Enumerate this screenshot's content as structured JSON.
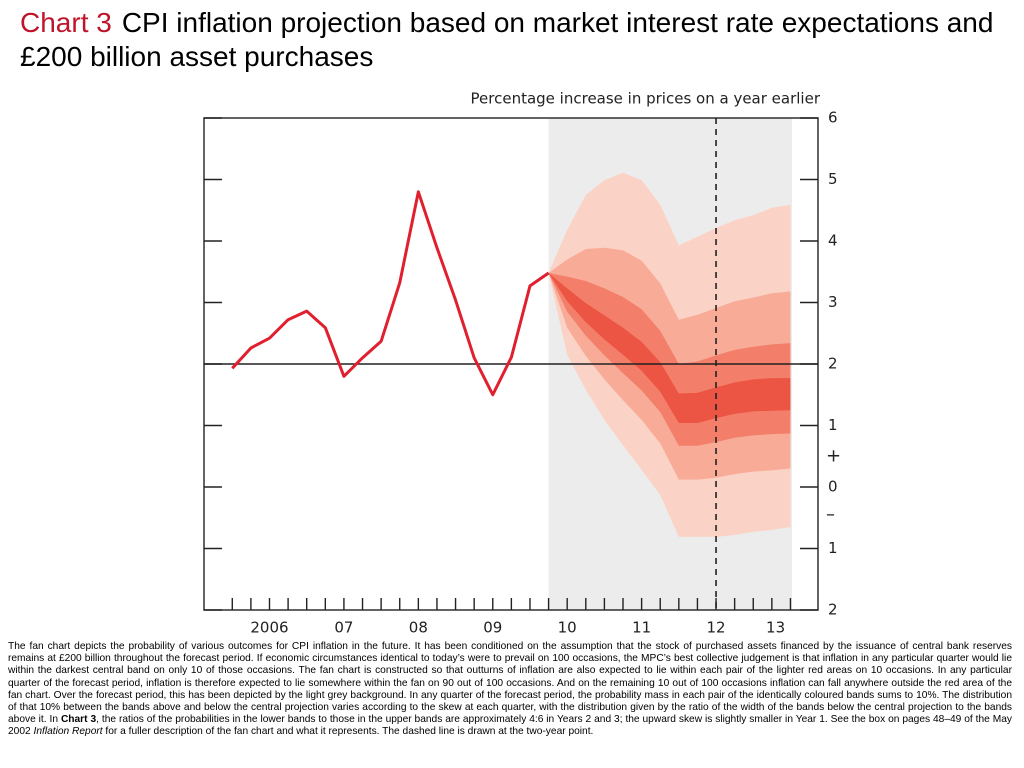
{
  "chart_data": {
    "type": "fan",
    "title_prefix": "Chart 3",
    "title": "CPI inflation projection based on market interest rate expectations and £200 billion asset purchases",
    "subtitle": "Percentage increase in prices on a year earlier",
    "axis_signs": {
      "positive": "+",
      "negative": "–"
    },
    "xlim": [
      2005.62,
      2013.87
    ],
    "ylim": [
      -2,
      6
    ],
    "yticks": [
      {
        "value": -2,
        "label": "2"
      },
      {
        "value": -1,
        "label": "1"
      },
      0,
      1,
      2,
      3,
      4,
      5,
      6
    ],
    "xticks": [
      {
        "value": 2006.5,
        "label": "2006"
      },
      {
        "value": 2007.5,
        "label": "07"
      },
      {
        "value": 2008.5,
        "label": "08"
      },
      {
        "value": 2009.5,
        "label": "09"
      },
      {
        "value": 2010.5,
        "label": "10"
      },
      {
        "value": 2011.5,
        "label": "11"
      },
      {
        "value": 2012.5,
        "label": "12"
      },
      {
        "value": 2013.3,
        "label": "13"
      }
    ],
    "xminorticks": [
      2006,
      2006.25,
      2006.5,
      2006.75,
      2007,
      2007.25,
      2007.5,
      2007.75,
      2008,
      2008.25,
      2008.5,
      2008.75,
      2009,
      2009.25,
      2009.5,
      2009.75,
      2010,
      2010.25,
      2010.5,
      2010.75,
      2011,
      2011.25,
      2011.5,
      2011.75,
      2012,
      2012.25,
      2012.5,
      2012.75,
      2013,
      2013.25,
      2013.5
    ],
    "reference_line": 2,
    "forecast_period": [
      2010.25,
      2013.52
    ],
    "forecast_color": "#ececec",
    "two_year_point": 2012.5,
    "series": [
      {
        "color": "#e0202e",
        "x": [
          2006,
          2006.25,
          2006.5,
          2006.75,
          2007,
          2007.25,
          2007.5,
          2007.75,
          2008,
          2008.25,
          2008.5,
          2008.75,
          2009,
          2009.25,
          2009.5,
          2009.75,
          2010,
          2010.25
        ],
        "values": [
          1.93,
          2.26,
          2.42,
          2.72,
          2.86,
          2.59,
          1.8,
          2.1,
          2.37,
          3.32,
          4.8,
          3.89,
          3.04,
          2.1,
          1.5,
          2.11,
          3.27,
          3.48
        ]
      }
    ],
    "fan_x": [
      2010.25,
      2010.5,
      2010.75,
      2011,
      2011.25,
      2011.5,
      2011.75,
      2012,
      2012.25,
      2012.5,
      2012.75,
      2013,
      2013.25,
      2013.5
    ],
    "bands": [
      {
        "color": "#fbd3c6",
        "upper": [
          3.48,
          4.18,
          4.75,
          4.99,
          5.11,
          4.99,
          4.59,
          3.93,
          4.07,
          4.21,
          4.34,
          4.42,
          4.54,
          4.59
        ],
        "lower": [
          3.48,
          2.15,
          1.58,
          1.09,
          0.68,
          0.28,
          -0.13,
          -0.81,
          -0.81,
          -0.81,
          -0.78,
          -0.73,
          -0.7,
          -0.65
        ]
      },
      {
        "color": "#f8ac98",
        "upper": [
          3.48,
          3.7,
          3.87,
          3.89,
          3.85,
          3.68,
          3.31,
          2.72,
          2.8,
          2.91,
          3.02,
          3.08,
          3.15,
          3.18
        ],
        "lower": [
          3.48,
          2.59,
          2.13,
          1.75,
          1.41,
          1.09,
          0.71,
          0.12,
          0.12,
          0.15,
          0.21,
          0.25,
          0.27,
          0.3
        ]
      },
      {
        "color": "#f37e69",
        "upper": [
          3.48,
          3.42,
          3.35,
          3.23,
          3.09,
          2.89,
          2.54,
          2.0,
          2.04,
          2.14,
          2.23,
          2.28,
          2.32,
          2.34
        ],
        "lower": [
          3.48,
          2.85,
          2.46,
          2.14,
          1.85,
          1.57,
          1.22,
          0.67,
          0.67,
          0.73,
          0.8,
          0.84,
          0.86,
          0.87
        ]
      },
      {
        "color": "#ec5444",
        "upper": [
          3.48,
          3.23,
          2.99,
          2.79,
          2.59,
          2.36,
          2.03,
          1.52,
          1.53,
          1.62,
          1.7,
          1.75,
          1.77,
          1.77
        ],
        "lower": [
          3.48,
          3.02,
          2.68,
          2.4,
          2.15,
          1.89,
          1.55,
          1.04,
          1.04,
          1.12,
          1.19,
          1.23,
          1.24,
          1.25
        ]
      }
    ],
    "footnote": [
      "The fan chart depicts the probability of various outcomes for CPI inflation in the future.  It has been conditioned on the assumption that the stock of purchased assets financed by the issuance of central bank reserves remains at £200 billion throughout the forecast period.  If economic circumstances identical to today’s were to prevail on 100 occasions, the MPC’s best collective judgement is that inflation in any particular quarter would lie within the darkest central band on only 10 of those occasions.  The fan chart is constructed so that outturns of inflation are also expected to lie within each pair of the lighter red areas on 10 occasions.  In any particular quarter of the forecast period, inflation is therefore expected to lie somewhere within the fan on 90 out of 100 occasions.  And on the remaining 10 out of 100 occasions inflation can fall anywhere outside the red area of the fan chart.  Over the forecast period, this has been depicted by the light grey background.  In any quarter of the forecast period, the probability mass in each pair of the identically coloured bands sums to 10%.  The distribution of that 10% between the bands above and below the central projection varies according to the skew at each quarter, with the distribution given by the ratio of the width of the bands below the central projection to the bands above it.  In ",
      "Chart 3",
      ", the ratios of the probabilities in the lower bands to those in the upper bands are approximately 4:6 in Years 2 and 3;  the upward skew is slightly smaller in Year 1.  See the box on pages 48–49 of the May 2002 ",
      "Inflation Report",
      " for a fuller description of the fan chart and what it represents.  The dashed line is drawn at the two-year point."
    ]
  }
}
